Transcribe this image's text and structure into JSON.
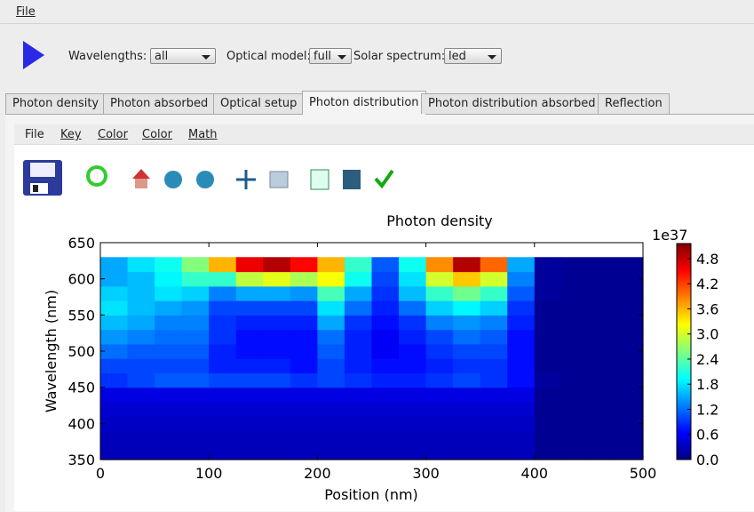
{
  "menu": [
    "File"
  ],
  "controls": {
    "wavelengths_label": "Wavelengths:",
    "wavelengths": "all",
    "optical_model_label": "Optical model:",
    "optical_model": "full",
    "solar_spectrum_label": "Solar spectrum:",
    "solar_spectrum": "led"
  },
  "tabs": [
    "Photon density",
    "Photon absorbed",
    "Optical setup",
    "Photon distribution",
    "Photon distribution absorbed",
    "Reflection"
  ],
  "plot_menu": [
    "File",
    "Key",
    "Color",
    "Color",
    "Math"
  ],
  "chart_data": {
    "type": "heatmap",
    "title": "Photon density",
    "x_label": "Position (nm)",
    "y_label": "Wavelength (nm)",
    "xlim": [
      0,
      500
    ],
    "ylim": [
      350,
      650
    ],
    "xticks": [
      0,
      100,
      200,
      300,
      400,
      500
    ],
    "yticks": [
      350,
      400,
      450,
      500,
      550,
      600,
      650
    ],
    "x_edges": [
      0,
      25,
      50,
      75,
      100,
      125,
      150,
      175,
      200,
      225,
      250,
      275,
      300,
      325,
      350,
      375,
      400,
      425,
      450,
      475,
      500
    ],
    "y_edges": [
      350,
      370,
      390,
      410,
      430,
      450,
      470,
      490,
      510,
      530,
      550,
      570,
      590,
      610,
      630
    ],
    "values": [
      [
        0.3,
        0.3,
        0.3,
        0.3,
        0.3,
        0.3,
        0.3,
        0.3,
        0.3,
        0.3,
        0.3,
        0.3,
        0.3,
        0.3,
        0.3,
        0.3,
        0.1,
        0.1,
        0.1,
        0.1
      ],
      [
        0.3,
        0.3,
        0.3,
        0.3,
        0.3,
        0.3,
        0.3,
        0.3,
        0.3,
        0.3,
        0.3,
        0.3,
        0.3,
        0.3,
        0.3,
        0.3,
        0.1,
        0.1,
        0.1,
        0.1
      ],
      [
        0.35,
        0.35,
        0.35,
        0.35,
        0.35,
        0.35,
        0.35,
        0.35,
        0.35,
        0.35,
        0.35,
        0.35,
        0.35,
        0.35,
        0.35,
        0.35,
        0.1,
        0.1,
        0.1,
        0.1
      ],
      [
        0.4,
        0.4,
        0.4,
        0.4,
        0.4,
        0.4,
        0.4,
        0.4,
        0.4,
        0.4,
        0.4,
        0.4,
        0.4,
        0.4,
        0.4,
        0.4,
        0.1,
        0.1,
        0.1,
        0.1
      ],
      [
        0.5,
        0.5,
        0.5,
        0.5,
        0.5,
        0.5,
        0.5,
        0.5,
        0.5,
        0.5,
        0.5,
        0.5,
        0.5,
        0.5,
        0.5,
        0.5,
        0.1,
        0.1,
        0.1,
        0.1
      ],
      [
        0.9,
        1.0,
        1.1,
        1.1,
        1.0,
        1.0,
        1.0,
        0.9,
        1.0,
        0.9,
        0.8,
        0.8,
        0.9,
        1.0,
        0.9,
        0.7,
        0.15,
        0.1,
        0.1,
        0.1
      ],
      [
        1.0,
        1.0,
        1.0,
        1.0,
        0.8,
        0.8,
        0.8,
        0.7,
        1.0,
        0.8,
        0.7,
        0.7,
        0.8,
        0.9,
        0.9,
        0.7,
        0.1,
        0.1,
        0.1,
        0.1
      ],
      [
        1.2,
        1.1,
        1.1,
        1.1,
        0.8,
        0.7,
        0.7,
        0.7,
        1.1,
        0.8,
        0.6,
        0.7,
        0.9,
        1.0,
        1.0,
        0.7,
        0.1,
        0.1,
        0.1,
        0.1
      ],
      [
        1.4,
        1.3,
        1.2,
        1.2,
        0.9,
        0.7,
        0.7,
        0.7,
        1.2,
        0.8,
        0.6,
        0.8,
        1.0,
        1.2,
        1.1,
        0.7,
        0.1,
        0.1,
        0.1,
        0.1
      ],
      [
        1.6,
        1.5,
        1.3,
        1.3,
        0.9,
        0.8,
        0.8,
        0.8,
        1.5,
        0.9,
        0.7,
        0.9,
        1.3,
        1.4,
        1.3,
        0.8,
        0.1,
        0.1,
        0.1,
        0.1
      ],
      [
        1.8,
        1.6,
        1.5,
        1.4,
        1.0,
        1.0,
        1.0,
        1.0,
        1.8,
        1.2,
        0.8,
        1.2,
        1.7,
        1.9,
        1.7,
        0.9,
        0.1,
        0.1,
        0.1,
        0.1
      ],
      [
        1.7,
        1.6,
        1.8,
        1.7,
        1.3,
        1.5,
        1.5,
        1.4,
        2.3,
        1.5,
        0.9,
        1.6,
        2.2,
        2.5,
        2.2,
        1.1,
        0.15,
        0.1,
        0.1,
        0.1
      ],
      [
        1.5,
        1.6,
        1.9,
        2.2,
        2.2,
        2.9,
        3.1,
        2.8,
        3.2,
        2.0,
        1.0,
        1.8,
        3.0,
        3.5,
        3.0,
        1.3,
        0.15,
        0.1,
        0.1,
        0.1
      ],
      [
        1.5,
        1.8,
        2.0,
        2.6,
        3.6,
        4.6,
        4.9,
        4.5,
        3.6,
        2.2,
        1.1,
        2.0,
        3.8,
        4.9,
        4.0,
        1.5,
        0.15,
        0.1,
        0.1,
        0.1
      ]
    ],
    "colormap": "jet",
    "colorbar": {
      "clim": [
        0,
        5.16
      ],
      "offset_label": "1e37",
      "ticks": [
        {
          "value": 0,
          "label": "0.0"
        },
        0.6,
        1.2,
        1.8,
        2.4,
        {
          "value": 3,
          "label": "3.0"
        },
        3.6,
        4.2,
        4.8
      ]
    }
  }
}
